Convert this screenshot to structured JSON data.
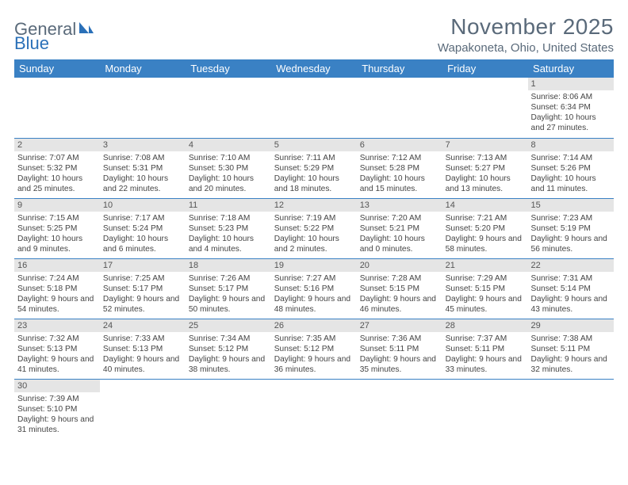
{
  "logo": {
    "part1": "General",
    "part2": "Blue"
  },
  "title": "November 2025",
  "location": "Wapakoneta, Ohio, United States",
  "colors": {
    "header_bg": "#3a81c4",
    "header_text": "#ffffff",
    "daynum_bg": "#e5e5e5",
    "border": "#3a81c4",
    "title_color": "#5a6a7a"
  },
  "dayNames": [
    "Sunday",
    "Monday",
    "Tuesday",
    "Wednesday",
    "Thursday",
    "Friday",
    "Saturday"
  ],
  "weeks": [
    [
      null,
      null,
      null,
      null,
      null,
      null,
      {
        "n": "1",
        "sr": "8:06 AM",
        "ss": "6:34 PM",
        "dl": "10 hours and 27 minutes."
      }
    ],
    [
      {
        "n": "2",
        "sr": "7:07 AM",
        "ss": "5:32 PM",
        "dl": "10 hours and 25 minutes."
      },
      {
        "n": "3",
        "sr": "7:08 AM",
        "ss": "5:31 PM",
        "dl": "10 hours and 22 minutes."
      },
      {
        "n": "4",
        "sr": "7:10 AM",
        "ss": "5:30 PM",
        "dl": "10 hours and 20 minutes."
      },
      {
        "n": "5",
        "sr": "7:11 AM",
        "ss": "5:29 PM",
        "dl": "10 hours and 18 minutes."
      },
      {
        "n": "6",
        "sr": "7:12 AM",
        "ss": "5:28 PM",
        "dl": "10 hours and 15 minutes."
      },
      {
        "n": "7",
        "sr": "7:13 AM",
        "ss": "5:27 PM",
        "dl": "10 hours and 13 minutes."
      },
      {
        "n": "8",
        "sr": "7:14 AM",
        "ss": "5:26 PM",
        "dl": "10 hours and 11 minutes."
      }
    ],
    [
      {
        "n": "9",
        "sr": "7:15 AM",
        "ss": "5:25 PM",
        "dl": "10 hours and 9 minutes."
      },
      {
        "n": "10",
        "sr": "7:17 AM",
        "ss": "5:24 PM",
        "dl": "10 hours and 6 minutes."
      },
      {
        "n": "11",
        "sr": "7:18 AM",
        "ss": "5:23 PM",
        "dl": "10 hours and 4 minutes."
      },
      {
        "n": "12",
        "sr": "7:19 AM",
        "ss": "5:22 PM",
        "dl": "10 hours and 2 minutes."
      },
      {
        "n": "13",
        "sr": "7:20 AM",
        "ss": "5:21 PM",
        "dl": "10 hours and 0 minutes."
      },
      {
        "n": "14",
        "sr": "7:21 AM",
        "ss": "5:20 PM",
        "dl": "9 hours and 58 minutes."
      },
      {
        "n": "15",
        "sr": "7:23 AM",
        "ss": "5:19 PM",
        "dl": "9 hours and 56 minutes."
      }
    ],
    [
      {
        "n": "16",
        "sr": "7:24 AM",
        "ss": "5:18 PM",
        "dl": "9 hours and 54 minutes."
      },
      {
        "n": "17",
        "sr": "7:25 AM",
        "ss": "5:17 PM",
        "dl": "9 hours and 52 minutes."
      },
      {
        "n": "18",
        "sr": "7:26 AM",
        "ss": "5:17 PM",
        "dl": "9 hours and 50 minutes."
      },
      {
        "n": "19",
        "sr": "7:27 AM",
        "ss": "5:16 PM",
        "dl": "9 hours and 48 minutes."
      },
      {
        "n": "20",
        "sr": "7:28 AM",
        "ss": "5:15 PM",
        "dl": "9 hours and 46 minutes."
      },
      {
        "n": "21",
        "sr": "7:29 AM",
        "ss": "5:15 PM",
        "dl": "9 hours and 45 minutes."
      },
      {
        "n": "22",
        "sr": "7:31 AM",
        "ss": "5:14 PM",
        "dl": "9 hours and 43 minutes."
      }
    ],
    [
      {
        "n": "23",
        "sr": "7:32 AM",
        "ss": "5:13 PM",
        "dl": "9 hours and 41 minutes."
      },
      {
        "n": "24",
        "sr": "7:33 AM",
        "ss": "5:13 PM",
        "dl": "9 hours and 40 minutes."
      },
      {
        "n": "25",
        "sr": "7:34 AM",
        "ss": "5:12 PM",
        "dl": "9 hours and 38 minutes."
      },
      {
        "n": "26",
        "sr": "7:35 AM",
        "ss": "5:12 PM",
        "dl": "9 hours and 36 minutes."
      },
      {
        "n": "27",
        "sr": "7:36 AM",
        "ss": "5:11 PM",
        "dl": "9 hours and 35 minutes."
      },
      {
        "n": "28",
        "sr": "7:37 AM",
        "ss": "5:11 PM",
        "dl": "9 hours and 33 minutes."
      },
      {
        "n": "29",
        "sr": "7:38 AM",
        "ss": "5:11 PM",
        "dl": "9 hours and 32 minutes."
      }
    ],
    [
      {
        "n": "30",
        "sr": "7:39 AM",
        "ss": "5:10 PM",
        "dl": "9 hours and 31 minutes."
      },
      null,
      null,
      null,
      null,
      null,
      null
    ]
  ],
  "labels": {
    "sunrise": "Sunrise:",
    "sunset": "Sunset:",
    "daylight": "Daylight:"
  }
}
